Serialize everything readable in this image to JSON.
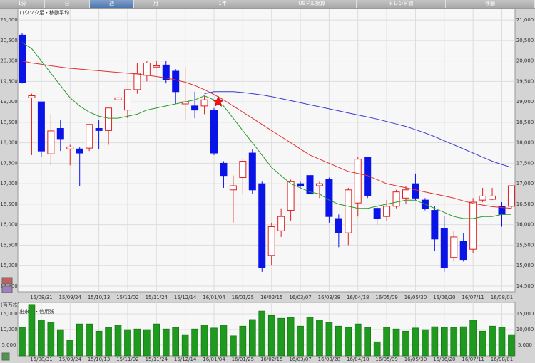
{
  "tabs": [
    "1分",
    "日",
    "週",
    "月",
    "1年",
    "USドル換算",
    "トレンド線",
    "移動"
  ],
  "chart_data": [
    {
      "type": "candlestick",
      "title": "ロウソク足・移動平均",
      "categories": [
        null,
        null,
        "15/08/31",
        null,
        null,
        "15/09/24",
        null,
        null,
        "15/10/13",
        null,
        null,
        "15/11/02",
        null,
        null,
        "15/11/24",
        null,
        null,
        "15/12/14",
        null,
        null,
        "16/01/04",
        null,
        null,
        "16/01/25",
        null,
        null,
        "16/02/15",
        null,
        null,
        "16/03/07",
        null,
        null,
        "16/03/28",
        null,
        null,
        "16/04/18",
        null,
        null,
        "16/05/09",
        null,
        null,
        "16/05/30",
        null,
        null,
        "16/06/20",
        null,
        null,
        "16/07/11",
        null,
        null,
        "16/08/01",
        null
      ],
      "open": [
        20630,
        19100,
        19000,
        17730,
        18350,
        17850,
        17850,
        17870,
        18350,
        18300,
        19050,
        18800,
        19300,
        19650,
        19850,
        19900,
        19750,
        18950,
        18900,
        18900,
        18800,
        17500,
        16850,
        17150,
        17750,
        17000,
        15250,
        15850,
        16350,
        17000,
        17200,
        16950,
        17100,
        16150,
        15800,
        16530,
        17650,
        16400,
        16200,
        16450,
        16650,
        17000,
        16600,
        16350,
        15900,
        15200,
        15600,
        15400,
        16600,
        16620,
        16450,
        16450
      ],
      "high": [
        20680,
        19200,
        19000,
        18700,
        18550,
        17950,
        17900,
        18450,
        18550,
        18850,
        19300,
        19300,
        19950,
        20000,
        20000,
        20000,
        19800,
        19850,
        19250,
        19150,
        18850,
        17550,
        17200,
        17600,
        17850,
        17050,
        16050,
        16400,
        17100,
        17050,
        17250,
        17050,
        17150,
        16250,
        16900,
        17650,
        17650,
        16450,
        16600,
        16850,
        16950,
        17250,
        16650,
        16450,
        16200,
        15850,
        15800,
        16650,
        16900,
        16900,
        16550,
        16950
      ],
      "low": [
        19450,
        17700,
        17650,
        17450,
        17800,
        17450,
        16950,
        17800,
        17850,
        17950,
        18650,
        18600,
        19200,
        19500,
        19850,
        19450,
        18950,
        18550,
        18600,
        18700,
        17700,
        16900,
        16050,
        16750,
        16750,
        14850,
        15000,
        15700,
        16100,
        16900,
        16700,
        16650,
        16050,
        15450,
        15500,
        16200,
        16650,
        16000,
        16100,
        16400,
        16500,
        16600,
        16350,
        15350,
        14850,
        15100,
        15100,
        15300,
        16550,
        16600,
        15950,
        16400
      ],
      "close": [
        19470,
        19150,
        17800,
        18290,
        18100,
        17900,
        17750,
        18450,
        18300,
        18850,
        19100,
        19300,
        19700,
        19950,
        19880,
        19550,
        19250,
        19000,
        18800,
        19050,
        17750,
        17200,
        16950,
        17550,
        16850,
        14950,
        15950,
        16200,
        17050,
        16950,
        16750,
        17000,
        16200,
        15800,
        16850,
        17600,
        16700,
        16150,
        16450,
        16800,
        16850,
        16650,
        16400,
        15650,
        14950,
        15700,
        15150,
        16550,
        16700,
        16700,
        16250,
        16950
      ],
      "up_color": "#e02020",
      "down_color": "#0a14e6",
      "series": [
        {
          "color": "#e03030",
          "values": [
            20000,
            19950,
            19920,
            19880,
            19850,
            19820,
            19800,
            19780,
            19760,
            19740,
            19720,
            19700,
            19680,
            19650,
            19620,
            19580,
            19540,
            19480,
            19400,
            19300,
            19180,
            19050,
            18900,
            18750,
            18600,
            18450,
            18300,
            18150,
            18000,
            17850,
            17700,
            17600,
            17500,
            17400,
            17300,
            17250,
            17200,
            17100,
            17000,
            16950,
            16900,
            16850,
            16800,
            16750,
            16700,
            16650,
            16580,
            16520,
            16480,
            16440,
            16420,
            16400
          ]
        },
        {
          "color": "#2a9a2a",
          "values": [
            20450,
            20300,
            20000,
            19700,
            19400,
            19100,
            18900,
            18750,
            18650,
            18600,
            18600,
            18650,
            18700,
            18800,
            18850,
            18900,
            18950,
            19000,
            19050,
            19150,
            19050,
            18900,
            18600,
            18300,
            18000,
            17700,
            17400,
            17200,
            17000,
            16900,
            16800,
            16750,
            16600,
            16500,
            16450,
            16400,
            16400,
            16450,
            16500,
            16550,
            16600,
            16600,
            16500,
            16400,
            16300,
            16200,
            16150,
            16150,
            16200,
            16200,
            16250,
            16250
          ]
        },
        {
          "color": "#3a3ad0",
          "values": [
            null,
            null,
            null,
            null,
            null,
            null,
            null,
            null,
            null,
            null,
            null,
            null,
            null,
            null,
            null,
            null,
            null,
            null,
            null,
            19200,
            19250,
            19250,
            19250,
            19230,
            19200,
            19170,
            19130,
            19080,
            19030,
            18980,
            18930,
            18880,
            18830,
            18780,
            18730,
            18680,
            18630,
            18580,
            18520,
            18460,
            18400,
            18320,
            18240,
            18150,
            18050,
            17950,
            17850,
            17750,
            17650,
            17550,
            17470,
            17400
          ]
        }
      ],
      "ylim": [
        14360,
        21280
      ],
      "yticks": [
        {
          "value": 14500,
          "label": "14,500"
        },
        {
          "value": 15000,
          "label": "15,000"
        },
        {
          "value": 15500,
          "label": "15,500"
        },
        {
          "value": 16000,
          "label": "16,000"
        },
        {
          "value": 16500,
          "label": "16,500"
        },
        {
          "value": 17000,
          "label": "17,000"
        },
        {
          "value": 17500,
          "label": "17,500"
        },
        {
          "value": 18000,
          "label": "18,000"
        },
        {
          "value": 18500,
          "label": "18,500"
        },
        {
          "value": 19000,
          "label": "19,000"
        },
        {
          "value": 19500,
          "label": "19,500"
        },
        {
          "value": 20000,
          "label": "20,000"
        },
        {
          "value": 20500,
          "label": "20,500"
        },
        {
          "value": 21000,
          "label": "21,000"
        }
      ],
      "grid": true
    },
    {
      "type": "bar",
      "title": "出来高・信用残",
      "y_label": "(百万株)",
      "categories": [
        null,
        null,
        "15/08/31",
        null,
        null,
        "15/09/24",
        null,
        null,
        "15/10/13",
        null,
        null,
        "15/11/02",
        null,
        null,
        "15/11/24",
        null,
        null,
        "15/12/14",
        null,
        null,
        "16/01/04",
        null,
        null,
        "16/01/25",
        null,
        null,
        "16/02/15",
        null,
        null,
        "16/03/07",
        null,
        null,
        "16/03/28",
        null,
        null,
        "16/04/18",
        null,
        null,
        "16/05/09",
        null,
        null,
        "16/05/30",
        null,
        null,
        "16/06/20",
        null,
        null,
        "16/07/11",
        null,
        null,
        "16/08/01",
        null
      ],
      "values": [
        10700,
        18000,
        13000,
        12300,
        10000,
        6600,
        11800,
        11800,
        9500,
        10700,
        11400,
        10000,
        10200,
        10000,
        11800,
        10200,
        10700,
        8400,
        10200,
        11400,
        10500,
        11400,
        8000,
        11100,
        13200,
        15900,
        14500,
        13600,
        13900,
        11100,
        13900,
        13000,
        12300,
        11100,
        10700,
        11800,
        10700,
        6100,
        10700,
        10200,
        9500,
        10500,
        10000,
        10900,
        10700,
        10700,
        10900,
        13000,
        9500,
        11100,
        10700,
        8400
      ],
      "color": "#1f9a1f",
      "ylim": [
        1600,
        18640
      ],
      "yticks": [
        {
          "value": 5000,
          "label": "5,000"
        },
        {
          "value": 10000,
          "label": "10,000"
        },
        {
          "value": 15000,
          "label": "15,000"
        }
      ],
      "grid": true
    }
  ]
}
